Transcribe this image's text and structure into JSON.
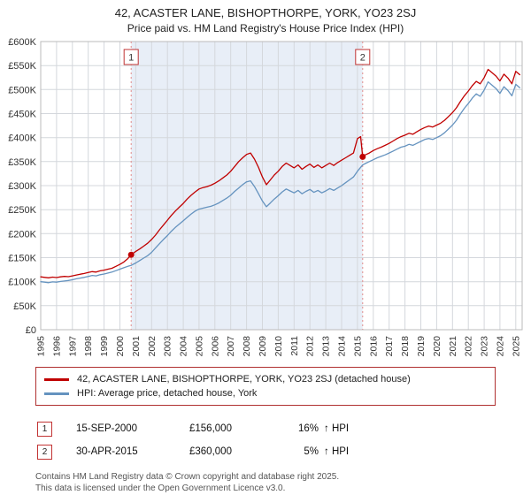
{
  "title": "42, ACASTER LANE, BISHOPTHORPE, YORK, YO23 2SJ",
  "subtitle": "Price paid vs. HM Land Registry's House Price Index (HPI)",
  "chart_data": {
    "type": "line",
    "x_range": [
      1995,
      2025.4
    ],
    "y_range": [
      0,
      600000
    ],
    "y_tick_step": 50000,
    "y_tick_labels": [
      "£0",
      "£50K",
      "£100K",
      "£150K",
      "£200K",
      "£250K",
      "£300K",
      "£350K",
      "£400K",
      "£450K",
      "£500K",
      "£550K",
      "£600K"
    ],
    "x_ticks": [
      1995,
      1996,
      1997,
      1998,
      1999,
      2000,
      2001,
      2002,
      2003,
      2004,
      2005,
      2006,
      2007,
      2008,
      2009,
      2010,
      2011,
      2012,
      2013,
      2014,
      2015,
      2016,
      2017,
      2018,
      2019,
      2020,
      2021,
      2022,
      2023,
      2024,
      2025
    ],
    "grid": true,
    "legend_position": "bottom",
    "region_color": "#e8eef7",
    "shaded_region": [
      2000.71,
      2015.33
    ],
    "sales": [
      {
        "label": "1",
        "x": 2000.71,
        "y": 156000
      },
      {
        "label": "2",
        "x": 2015.33,
        "y": 360000
      }
    ],
    "series": [
      {
        "name": "42, ACASTER LANE, BISHOPTHORPE, YORK, YO23 2SJ (detached house)",
        "color": "#c00000",
        "points": [
          [
            1995,
            110000
          ],
          [
            1995.25,
            109000
          ],
          [
            1995.5,
            108000
          ],
          [
            1995.75,
            109500
          ],
          [
            1996,
            108500
          ],
          [
            1996.25,
            110000
          ],
          [
            1996.5,
            111000
          ],
          [
            1996.75,
            110500
          ],
          [
            1997,
            112000
          ],
          [
            1997.25,
            114000
          ],
          [
            1997.5,
            115500
          ],
          [
            1997.75,
            117000
          ],
          [
            1998,
            119000
          ],
          [
            1998.25,
            121000
          ],
          [
            1998.5,
            120000
          ],
          [
            1998.75,
            122500
          ],
          [
            1999,
            124000
          ],
          [
            1999.25,
            126000
          ],
          [
            1999.5,
            128000
          ],
          [
            1999.75,
            132000
          ],
          [
            2000,
            136000
          ],
          [
            2000.25,
            141000
          ],
          [
            2000.5,
            148000
          ],
          [
            2000.71,
            156000
          ],
          [
            2001,
            163000
          ],
          [
            2001.25,
            168000
          ],
          [
            2001.5,
            174000
          ],
          [
            2001.75,
            180000
          ],
          [
            2002,
            188000
          ],
          [
            2002.25,
            197000
          ],
          [
            2002.5,
            208000
          ],
          [
            2002.75,
            218000
          ],
          [
            2003,
            228000
          ],
          [
            2003.25,
            238000
          ],
          [
            2003.5,
            247000
          ],
          [
            2003.75,
            255000
          ],
          [
            2004,
            263000
          ],
          [
            2004.25,
            272000
          ],
          [
            2004.5,
            280000
          ],
          [
            2004.75,
            287000
          ],
          [
            2005,
            293000
          ],
          [
            2005.25,
            296000
          ],
          [
            2005.5,
            298000
          ],
          [
            2005.75,
            301000
          ],
          [
            2006,
            305000
          ],
          [
            2006.25,
            310000
          ],
          [
            2006.5,
            316000
          ],
          [
            2006.75,
            322000
          ],
          [
            2007,
            330000
          ],
          [
            2007.25,
            340000
          ],
          [
            2007.5,
            350000
          ],
          [
            2007.75,
            358000
          ],
          [
            2008,
            365000
          ],
          [
            2008.25,
            368000
          ],
          [
            2008.5,
            355000
          ],
          [
            2008.75,
            338000
          ],
          [
            2009,
            318000
          ],
          [
            2009.25,
            302000
          ],
          [
            2009.5,
            312000
          ],
          [
            2009.75,
            322000
          ],
          [
            2010,
            330000
          ],
          [
            2010.25,
            340000
          ],
          [
            2010.5,
            347000
          ],
          [
            2010.75,
            342000
          ],
          [
            2011,
            337000
          ],
          [
            2011.25,
            343000
          ],
          [
            2011.5,
            334000
          ],
          [
            2011.75,
            340000
          ],
          [
            2012,
            345000
          ],
          [
            2012.25,
            338000
          ],
          [
            2012.5,
            343000
          ],
          [
            2012.75,
            337000
          ],
          [
            2013,
            342000
          ],
          [
            2013.25,
            347000
          ],
          [
            2013.5,
            342000
          ],
          [
            2013.75,
            348000
          ],
          [
            2014,
            353000
          ],
          [
            2014.25,
            358000
          ],
          [
            2014.5,
            363000
          ],
          [
            2014.75,
            368000
          ],
          [
            2015,
            398000
          ],
          [
            2015.2,
            402000
          ],
          [
            2015.33,
            360000
          ],
          [
            2015.5,
            364000
          ],
          [
            2015.75,
            368000
          ],
          [
            2016,
            373000
          ],
          [
            2016.25,
            377000
          ],
          [
            2016.5,
            380000
          ],
          [
            2016.75,
            384000
          ],
          [
            2017,
            388000
          ],
          [
            2017.25,
            393000
          ],
          [
            2017.5,
            398000
          ],
          [
            2017.75,
            402000
          ],
          [
            2018,
            405000
          ],
          [
            2018.25,
            409000
          ],
          [
            2018.5,
            407000
          ],
          [
            2018.75,
            412000
          ],
          [
            2019,
            417000
          ],
          [
            2019.25,
            421000
          ],
          [
            2019.5,
            424000
          ],
          [
            2019.75,
            422000
          ],
          [
            2020,
            426000
          ],
          [
            2020.25,
            430000
          ],
          [
            2020.5,
            436000
          ],
          [
            2020.75,
            444000
          ],
          [
            2021,
            452000
          ],
          [
            2021.25,
            462000
          ],
          [
            2021.5,
            475000
          ],
          [
            2021.75,
            487000
          ],
          [
            2022,
            497000
          ],
          [
            2022.25,
            508000
          ],
          [
            2022.5,
            517000
          ],
          [
            2022.75,
            512000
          ],
          [
            2023,
            525000
          ],
          [
            2023.25,
            542000
          ],
          [
            2023.5,
            535000
          ],
          [
            2023.75,
            528000
          ],
          [
            2024,
            518000
          ],
          [
            2024.25,
            532000
          ],
          [
            2024.5,
            524000
          ],
          [
            2024.75,
            512000
          ],
          [
            2025,
            538000
          ],
          [
            2025.25,
            531000
          ]
        ]
      },
      {
        "name": "HPI: Average price, detached house, York",
        "color": "#6593bf",
        "points": [
          [
            1995,
            100000
          ],
          [
            1995.25,
            99000
          ],
          [
            1995.5,
            98000
          ],
          [
            1995.75,
            99500
          ],
          [
            1996,
            99000
          ],
          [
            1996.25,
            100500
          ],
          [
            1996.5,
            101500
          ],
          [
            1996.75,
            102500
          ],
          [
            1997,
            104000
          ],
          [
            1997.25,
            106000
          ],
          [
            1997.5,
            107500
          ],
          [
            1997.75,
            109000
          ],
          [
            1998,
            111000
          ],
          [
            1998.25,
            113000
          ],
          [
            1998.5,
            112000
          ],
          [
            1998.75,
            114500
          ],
          [
            1999,
            116000
          ],
          [
            1999.25,
            118000
          ],
          [
            1999.5,
            120000
          ],
          [
            1999.75,
            123000
          ],
          [
            2000,
            126000
          ],
          [
            2000.25,
            129000
          ],
          [
            2000.5,
            132000
          ],
          [
            2000.71,
            134000
          ],
          [
            2001,
            139000
          ],
          [
            2001.25,
            144000
          ],
          [
            2001.5,
            149000
          ],
          [
            2001.75,
            154000
          ],
          [
            2002,
            161000
          ],
          [
            2002.25,
            170000
          ],
          [
            2002.5,
            179000
          ],
          [
            2002.75,
            188000
          ],
          [
            2003,
            196000
          ],
          [
            2003.25,
            205000
          ],
          [
            2003.5,
            213000
          ],
          [
            2003.75,
            220000
          ],
          [
            2004,
            227000
          ],
          [
            2004.25,
            234000
          ],
          [
            2004.5,
            241000
          ],
          [
            2004.75,
            247000
          ],
          [
            2005,
            251000
          ],
          [
            2005.25,
            253000
          ],
          [
            2005.5,
            255000
          ],
          [
            2005.75,
            257000
          ],
          [
            2006,
            260000
          ],
          [
            2006.25,
            264000
          ],
          [
            2006.5,
            269000
          ],
          [
            2006.75,
            274000
          ],
          [
            2007,
            280000
          ],
          [
            2007.25,
            288000
          ],
          [
            2007.5,
            295000
          ],
          [
            2007.75,
            302000
          ],
          [
            2008,
            308000
          ],
          [
            2008.25,
            310000
          ],
          [
            2008.5,
            298000
          ],
          [
            2008.75,
            283000
          ],
          [
            2009,
            268000
          ],
          [
            2009.25,
            256000
          ],
          [
            2009.5,
            264000
          ],
          [
            2009.75,
            272000
          ],
          [
            2010,
            279000
          ],
          [
            2010.25,
            287000
          ],
          [
            2010.5,
            293000
          ],
          [
            2010.75,
            289000
          ],
          [
            2011,
            285000
          ],
          [
            2011.25,
            290000
          ],
          [
            2011.5,
            283000
          ],
          [
            2011.75,
            288000
          ],
          [
            2012,
            292000
          ],
          [
            2012.25,
            286000
          ],
          [
            2012.5,
            290000
          ],
          [
            2012.75,
            285000
          ],
          [
            2013,
            289000
          ],
          [
            2013.25,
            294000
          ],
          [
            2013.5,
            290000
          ],
          [
            2013.75,
            295000
          ],
          [
            2014,
            300000
          ],
          [
            2014.25,
            306000
          ],
          [
            2014.5,
            312000
          ],
          [
            2014.75,
            318000
          ],
          [
            2015,
            330000
          ],
          [
            2015.33,
            343000
          ],
          [
            2015.5,
            346000
          ],
          [
            2015.75,
            350000
          ],
          [
            2016,
            354000
          ],
          [
            2016.25,
            358000
          ],
          [
            2016.5,
            361000
          ],
          [
            2016.75,
            364000
          ],
          [
            2017,
            368000
          ],
          [
            2017.25,
            372000
          ],
          [
            2017.5,
            376000
          ],
          [
            2017.75,
            380000
          ],
          [
            2018,
            382000
          ],
          [
            2018.25,
            386000
          ],
          [
            2018.5,
            384000
          ],
          [
            2018.75,
            388000
          ],
          [
            2019,
            392000
          ],
          [
            2019.25,
            396000
          ],
          [
            2019.5,
            398000
          ],
          [
            2019.75,
            396000
          ],
          [
            2020,
            400000
          ],
          [
            2020.25,
            404000
          ],
          [
            2020.5,
            410000
          ],
          [
            2020.75,
            418000
          ],
          [
            2021,
            426000
          ],
          [
            2021.25,
            436000
          ],
          [
            2021.5,
            449000
          ],
          [
            2021.75,
            461000
          ],
          [
            2022,
            471000
          ],
          [
            2022.25,
            482000
          ],
          [
            2022.5,
            491000
          ],
          [
            2022.75,
            486000
          ],
          [
            2023,
            499000
          ],
          [
            2023.25,
            516000
          ],
          [
            2023.5,
            509000
          ],
          [
            2023.75,
            502000
          ],
          [
            2024,
            492000
          ],
          [
            2024.25,
            506000
          ],
          [
            2024.5,
            498000
          ],
          [
            2024.75,
            487000
          ],
          [
            2025,
            511000
          ],
          [
            2025.25,
            504000
          ]
        ]
      }
    ]
  },
  "transactions": [
    {
      "num": "1",
      "date": "15-SEP-2000",
      "price": "£156,000",
      "pct": "16%",
      "rest": "↑ HPI"
    },
    {
      "num": "2",
      "date": "30-APR-2015",
      "price": "£360,000",
      "pct": "5%",
      "rest": "↑ HPI"
    }
  ],
  "footer": {
    "line1": "Contains HM Land Registry data © Crown copyright and database right 2025.",
    "line2": "This data is licensed under the Open Government Licence v3.0."
  }
}
